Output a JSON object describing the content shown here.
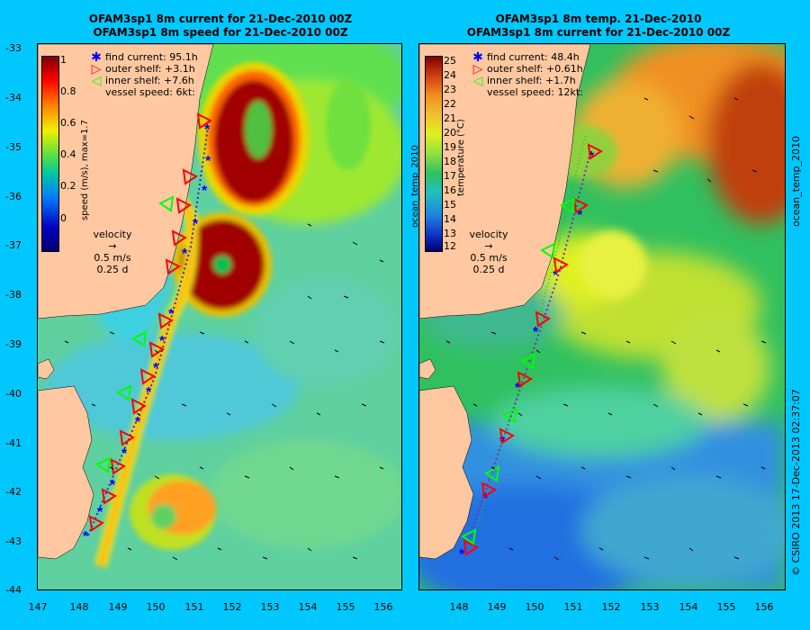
{
  "left_panel": {
    "title_line1": "OFAM3sp1 8m current for 21-Dec-2010 00Z",
    "title_line2": "OFAM3sp1 8m speed for 21-Dec-2010 00Z",
    "colorbar_label": "speed (m/s), max=1.7",
    "colorbar_ticks": [
      "1",
      "0.8",
      "0.6",
      "0.4",
      "0.2",
      "0"
    ],
    "legend": {
      "find_current": "find current: 95.1h",
      "outer_shelf": "outer shelf: +3.1h",
      "inner_shelf": "inner shelf: +7.6h",
      "vessel_speed": "vessel speed: 6kt:"
    },
    "velocity_title": "velocity",
    "velocity_scale": "0.5 m/s",
    "velocity_time": "0.25 d"
  },
  "right_panel": {
    "title_line1": "OFAM3sp1 8m temp. 21-Dec-2010",
    "title_line2": "OFAM3sp1 8m current for 21-Dec-2010 00Z",
    "colorbar_label": "temperature (°C)",
    "colorbar_side_label": "ocean_temp_2010",
    "colorbar_ticks": [
      "25",
      "24",
      "23",
      "22",
      "21",
      "20",
      "19",
      "18",
      "17",
      "16",
      "15",
      "14",
      "13",
      "12"
    ],
    "legend": {
      "find_current": "find current: 48.4h",
      "outer_shelf": "outer shelf: +0.61h",
      "inner_shelf": "inner shelf: +1.7h",
      "vessel_speed": "vessel speed: 12kt:"
    },
    "velocity_title": "velocity",
    "velocity_scale": "0.5 m/s",
    "velocity_time": "0.25 d"
  },
  "y_axis_labels": [
    "-33",
    "-34",
    "-35",
    "-36",
    "-37",
    "-38",
    "-39",
    "-40",
    "-41",
    "-42",
    "-43",
    "-44"
  ],
  "x_axis_labels": [
    "147",
    "148",
    "149",
    "150",
    "151",
    "152",
    "153",
    "154",
    "155",
    "156"
  ],
  "right_edge_label": "© CSIRO 2013   17-Dec-2013 02:37:07",
  "right_edge_label2": "ocean_temp_2010",
  "colors": {
    "background": "#00c8ff",
    "land": "#ffc8a0",
    "find_current_marker": "#0000ff",
    "outer_shelf_marker": "#ff0000",
    "inner_shelf_marker": "#00ff00"
  }
}
